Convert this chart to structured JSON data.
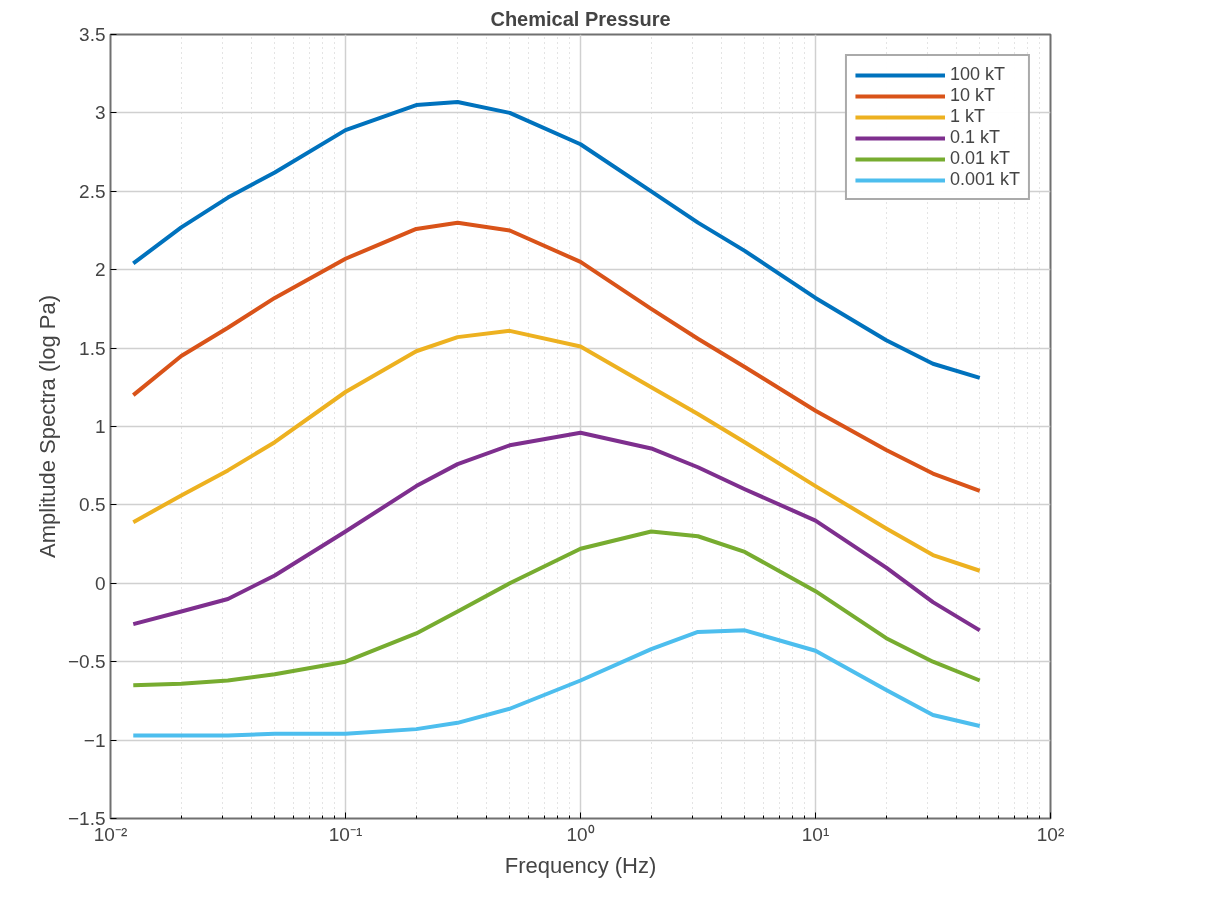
{
  "chart_data": {
    "type": "line",
    "title": "Chemical Pressure",
    "xlabel": "Frequency (Hz)",
    "ylabel": "Amplitude Spectra (log Pa)",
    "log": "x",
    "grid": true,
    "legend": "top right",
    "line_style": "solid",
    "xlim": [
      0.01,
      100
    ],
    "ylim": [
      -1.5,
      3.5
    ],
    "xticks": [
      {
        "value": 0.01,
        "label": "10⁻²"
      },
      {
        "value": 0.1,
        "label": "10⁻¹"
      },
      {
        "value": 1,
        "label": "10⁰"
      },
      {
        "value": 10,
        "label": "10¹"
      },
      {
        "value": 100,
        "label": "10²"
      }
    ],
    "yticks": [
      -1.5,
      -1,
      -0.5,
      0,
      0.5,
      1,
      1.5,
      2,
      2.5,
      3,
      3.5
    ],
    "x": [
      0.0125,
      0.02,
      0.0316,
      0.05,
      0.1,
      0.2,
      0.3,
      0.5,
      1,
      2,
      3.16,
      5,
      10,
      20,
      31.6,
      50
    ],
    "series": [
      {
        "name": "100 kT",
        "color": "#0072bd",
        "values": [
          2.04,
          2.27,
          2.46,
          2.62,
          2.89,
          3.05,
          3.07,
          3.0,
          2.8,
          2.5,
          2.3,
          2.12,
          1.82,
          1.55,
          1.4,
          1.31
        ]
      },
      {
        "name": "10 kT",
        "color": "#d95319",
        "values": [
          1.2,
          1.45,
          1.63,
          1.82,
          2.07,
          2.26,
          2.3,
          2.25,
          2.05,
          1.75,
          1.56,
          1.38,
          1.1,
          0.85,
          0.7,
          0.59
        ]
      },
      {
        "name": "1 kT",
        "color": "#edb120",
        "values": [
          0.39,
          0.56,
          0.72,
          0.9,
          1.22,
          1.48,
          1.57,
          1.61,
          1.51,
          1.25,
          1.08,
          0.9,
          0.62,
          0.35,
          0.18,
          0.08
        ]
      },
      {
        "name": "0.1 kT",
        "color": "#7e2f8e",
        "values": [
          -0.26,
          -0.18,
          -0.1,
          0.05,
          0.33,
          0.62,
          0.76,
          0.88,
          0.96,
          0.86,
          0.74,
          0.6,
          0.4,
          0.1,
          -0.12,
          -0.3
        ]
      },
      {
        "name": "0.01 kT",
        "color": "#77ac30",
        "values": [
          -0.65,
          -0.64,
          -0.62,
          -0.58,
          -0.5,
          -0.32,
          -0.18,
          0.0,
          0.22,
          0.33,
          0.3,
          0.2,
          -0.05,
          -0.35,
          -0.5,
          -0.62
        ]
      },
      {
        "name": "0.001 kT",
        "color": "#4dbeee",
        "values": [
          -0.97,
          -0.97,
          -0.97,
          -0.96,
          -0.96,
          -0.93,
          -0.89,
          -0.8,
          -0.62,
          -0.42,
          -0.31,
          -0.3,
          -0.43,
          -0.68,
          -0.84,
          -0.91
        ]
      }
    ]
  }
}
